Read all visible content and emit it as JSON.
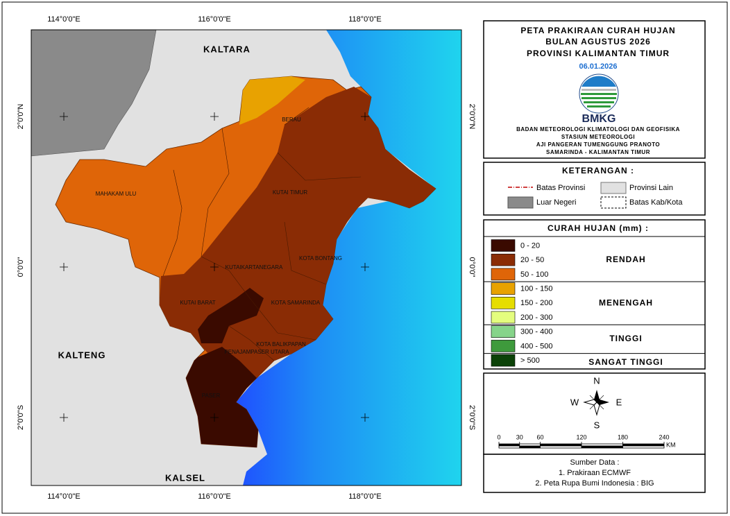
{
  "map": {
    "coord_labels": {
      "top": [
        "114°0'0\"E",
        "116°0'0\"E",
        "118°0'0\"E"
      ],
      "bottom": [
        "114°0'0\"E",
        "116°0'0\"E",
        "118°0'0\"E"
      ],
      "left": [
        "2°0'0\"N",
        "0°0'0\"",
        "2°0'0\"S"
      ],
      "right": [
        "2°0'0\"N",
        "0°0'0\"",
        "2°0'0\"S"
      ]
    },
    "neighbours": {
      "north": "KALTARA",
      "west": "KALTENG",
      "south": "KALSEL"
    },
    "regions": [
      "BERAU",
      "MAHAKAM ULU",
      "KUTAI TIMUR",
      "KUTAIKARTANEGARA",
      "KOTA BONTANG",
      "KUTAI BARAT",
      "KOTA SAMARINDA",
      "KOTA BALIKPAPAN",
      "PENAJAMPASER UTARA",
      "PASER"
    ]
  },
  "header": {
    "lines": [
      "PETA PRAKIRAAN CURAH HUJAN",
      "BULAN AGUSTUS 2026",
      "PROVINSI KALIMANTAN TIMUR"
    ],
    "date": "06.01.2026",
    "logo": "BMKG",
    "agency": [
      "BADAN METEOROLOGI KLIMATOLOGI DAN GEOFISIKA",
      "STASIUN METEOROLOGI",
      "AJI PANGERAN TUMENGGUNG PRANOTO",
      "SAMARINDA - KALIMANTAN TIMUR"
    ]
  },
  "keterangan": {
    "title": "KETERANGAN :",
    "items": [
      "Batas Provinsi",
      "Provinsi Lain",
      "Luar Negeri",
      "Batas Kab/Kota"
    ]
  },
  "legend": {
    "title": "CURAH HUJAN (mm) :",
    "classes": [
      {
        "label": "0 - 20",
        "color": "#3a0a00"
      },
      {
        "label": "20 - 50",
        "color": "#8a2c05"
      },
      {
        "label": "50 - 100",
        "color": "#df6508"
      },
      {
        "label": "100 - 150",
        "color": "#e8a201"
      },
      {
        "label": "150  - 200",
        "color": "#e6dd00"
      },
      {
        "label": "200 - 300",
        "color": "#e4fd7e"
      },
      {
        "label": "300 - 400",
        "color": "#86d48a"
      },
      {
        "label": "400 - 500",
        "color": "#3e9a3c"
      },
      {
        "label": "> 500",
        "color": "#0b4208"
      }
    ],
    "groups": [
      "RENDAH",
      "MENENGAH",
      "TINGGI",
      "SANGAT TINGGI"
    ]
  },
  "compass": {
    "n": "N",
    "s": "S",
    "w": "W",
    "e": "E"
  },
  "scale": {
    "ticks": [
      0,
      30,
      60,
      120,
      180,
      240
    ],
    "unit": "KM"
  },
  "source": {
    "title": "Sumber Data :",
    "items": [
      "1. Prakiraan ECMWF",
      "2. Peta Rupa Bumi Indonesia : BIG"
    ]
  }
}
